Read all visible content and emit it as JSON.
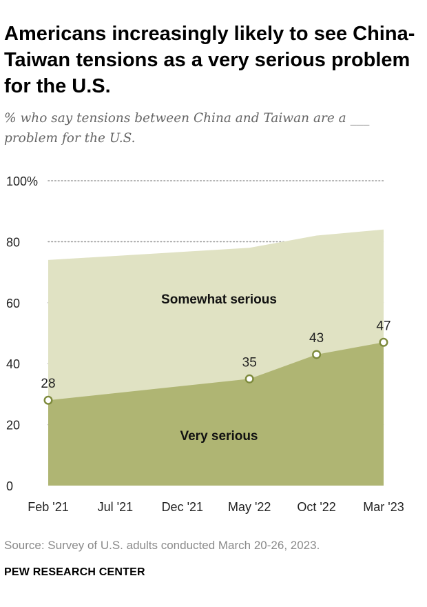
{
  "header": {
    "title": "Americans increasingly likely to see China-Taiwan tensions as a very serious problem for the U.S.",
    "subtitle": "% who say tensions between China and Taiwan are a ___ problem for the U.S."
  },
  "chart_data": {
    "type": "area",
    "title": "Americans increasingly likely to see China-Taiwan tensions as a very serious problem for the U.S.",
    "ylabel": "%",
    "ylim": [
      0,
      100
    ],
    "yticks": [
      0,
      20,
      40,
      60,
      80,
      100
    ],
    "ytick_labels": [
      "0",
      "20",
      "40",
      "60",
      "80",
      "100%"
    ],
    "x_axis_labels": [
      "Feb '21",
      "Jul '21",
      "Dec '21",
      "May '22",
      "Oct '22",
      "Mar '23"
    ],
    "x_axis_months": [
      0,
      5,
      10,
      15,
      20,
      25
    ],
    "x_points_months": [
      0,
      15,
      20,
      25
    ],
    "series": [
      {
        "name": "Very serious",
        "values": [
          28,
          35,
          43,
          47
        ],
        "labels": [
          "28",
          "35",
          "43",
          "47"
        ],
        "color": "#afb573"
      },
      {
        "name": "Somewhat serious",
        "values": [
          46,
          43,
          39,
          37
        ],
        "color": "#e0e2c3"
      }
    ],
    "grid": "dotted horizontal",
    "marker_stroke": "#7d8a3c"
  },
  "footer": {
    "source": "Source: Survey of U.S. adults conducted March 20-26, 2023.",
    "brand": "PEW RESEARCH CENTER"
  }
}
